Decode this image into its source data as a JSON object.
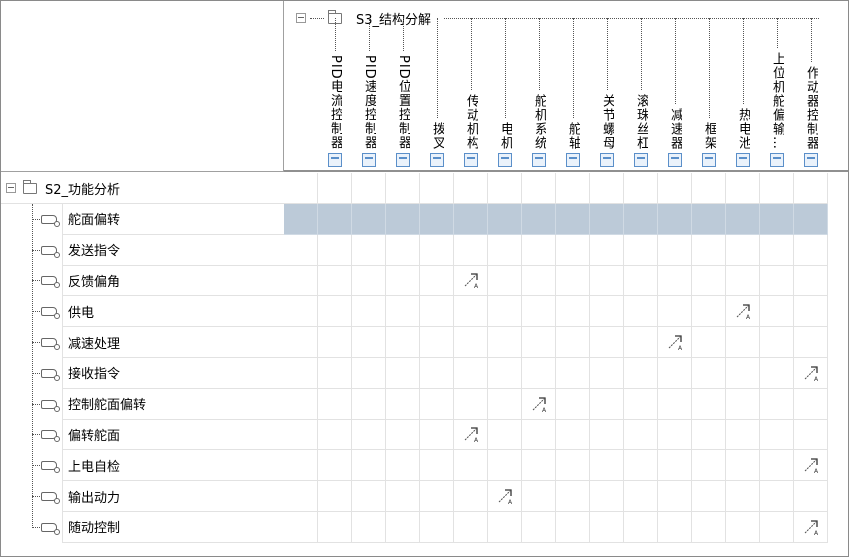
{
  "column_root": {
    "label": "S3_结构分解"
  },
  "columns": [
    "PID电流控制器",
    "PID速度控制器",
    "PID位置控制器",
    "拨叉",
    "传动机构",
    "电机",
    "舵机系统",
    "舵轴",
    "关节螺母",
    "滚珠丝杠",
    "减速器",
    "框架",
    "热电池",
    "上位机舵偏输…",
    "作动器控制器"
  ],
  "row_root": {
    "label": "S2_功能分析"
  },
  "rows": [
    {
      "label": "舵面偏转",
      "highlighted": true,
      "marks": []
    },
    {
      "label": "发送指令",
      "marks": []
    },
    {
      "label": "反馈偏角",
      "marks": [
        "传动机构"
      ]
    },
    {
      "label": "供电",
      "marks": [
        "热电池"
      ]
    },
    {
      "label": "减速处理",
      "marks": [
        "减速器"
      ]
    },
    {
      "label": "接收指令",
      "marks": [
        "作动器控制器"
      ]
    },
    {
      "label": "控制舵面偏转",
      "marks": [
        "舵机系统"
      ]
    },
    {
      "label": "偏转舵面",
      "marks": [
        "传动机构"
      ]
    },
    {
      "label": "上电自检",
      "marks": [
        "作动器控制器"
      ]
    },
    {
      "label": "输出动力",
      "marks": [
        "电机"
      ]
    },
    {
      "label": "随动控制",
      "marks": [
        "作动器控制器"
      ]
    }
  ],
  "icons": {
    "row_item": "function-icon",
    "mark": "allocation-arrow-icon",
    "node": "folder-icon",
    "collapse": "collapse-minus-icon"
  },
  "colors": {
    "highlight_row": "#bccad8",
    "column_button": "#5b8fc9"
  }
}
